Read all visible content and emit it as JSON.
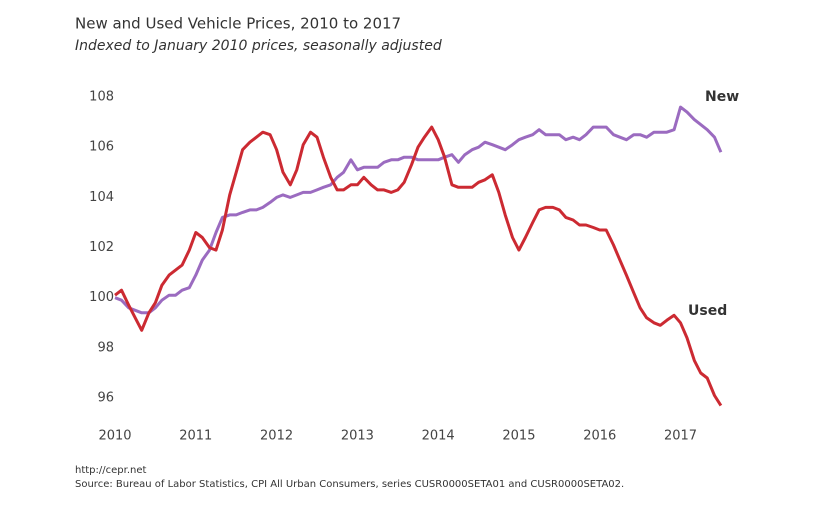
{
  "chart_data": {
    "type": "line",
    "title": "New and Used Vehicle Prices, 2010 to 2017",
    "subtitle": "Indexed to January 2010 prices, seasonally adjusted",
    "source_url": "http://cepr.net",
    "source": "Source:  Bureau of Labor Statistics, CPI All Urban Consumers, series CUSR0000SETA01 and CUSR0000SETA02.",
    "x": [
      2010,
      2010.08,
      2010.17,
      2010.25,
      2010.33,
      2010.42,
      2010.5,
      2010.58,
      2010.67,
      2010.75,
      2010.83,
      2010.92,
      2011,
      2011.08,
      2011.17,
      2011.25,
      2011.33,
      2011.42,
      2011.5,
      2011.58,
      2011.67,
      2011.75,
      2011.83,
      2011.92,
      2012,
      2012.08,
      2012.17,
      2012.25,
      2012.33,
      2012.42,
      2012.5,
      2012.58,
      2012.67,
      2012.75,
      2012.83,
      2012.92,
      2013,
      2013.08,
      2013.17,
      2013.25,
      2013.33,
      2013.42,
      2013.5,
      2013.58,
      2013.67,
      2013.75,
      2013.83,
      2013.92,
      2014,
      2014.08,
      2014.17,
      2014.25,
      2014.33,
      2014.42,
      2014.5,
      2014.58,
      2014.67,
      2014.75,
      2014.83,
      2014.92,
      2015,
      2015.08,
      2015.17,
      2015.25,
      2015.33,
      2015.42,
      2015.5,
      2015.58,
      2015.67,
      2015.75,
      2015.83,
      2015.92,
      2016,
      2016.08,
      2016.17,
      2016.25,
      2016.33,
      2016.42,
      2016.5,
      2016.58,
      2016.67,
      2016.75,
      2016.83,
      2016.92,
      2017,
      2017.08,
      2017.17,
      2017.25,
      2017.33,
      2017.42,
      2017.5
    ],
    "series": [
      {
        "name": "New",
        "color": "#9b6bc0",
        "values": [
          100.0,
          99.9,
          99.6,
          99.5,
          99.4,
          99.4,
          99.6,
          99.9,
          100.1,
          100.1,
          100.3,
          100.4,
          100.9,
          101.5,
          101.9,
          102.6,
          103.2,
          103.3,
          103.3,
          103.4,
          103.5,
          103.5,
          103.6,
          103.8,
          104.0,
          104.1,
          104.0,
          104.1,
          104.2,
          104.2,
          104.3,
          104.4,
          104.5,
          104.8,
          105.0,
          105.5,
          105.1,
          105.2,
          105.2,
          105.2,
          105.4,
          105.5,
          105.5,
          105.6,
          105.6,
          105.5,
          105.5,
          105.5,
          105.5,
          105.6,
          105.7,
          105.4,
          105.7,
          105.9,
          106.0,
          106.2,
          106.1,
          106.0,
          105.9,
          106.1,
          106.3,
          106.4,
          106.5,
          106.7,
          106.5,
          106.5,
          106.5,
          106.3,
          106.4,
          106.3,
          106.5,
          106.8,
          106.8,
          106.8,
          106.5,
          106.4,
          106.3,
          106.5,
          106.5,
          106.4,
          106.6,
          106.6,
          106.6,
          106.7,
          107.6,
          107.4,
          107.1,
          106.9,
          106.7,
          106.4,
          105.8
        ]
      },
      {
        "name": "Used",
        "color": "#cc2a32",
        "values": [
          100.1,
          100.3,
          99.7,
          99.2,
          98.7,
          99.4,
          99.8,
          100.5,
          100.9,
          101.1,
          101.3,
          101.9,
          102.6,
          102.4,
          102.0,
          101.9,
          102.7,
          104.1,
          105.0,
          105.9,
          106.2,
          106.4,
          106.6,
          106.5,
          105.9,
          105.0,
          104.5,
          105.1,
          106.1,
          106.6,
          106.4,
          105.6,
          104.8,
          104.3,
          104.3,
          104.5,
          104.5,
          104.8,
          104.5,
          104.3,
          104.3,
          104.2,
          104.3,
          104.6,
          105.3,
          106.0,
          106.4,
          106.8,
          106.3,
          105.6,
          104.5,
          104.4,
          104.4,
          104.4,
          104.6,
          104.7,
          104.9,
          104.2,
          103.3,
          102.4,
          101.9,
          102.4,
          103.0,
          103.5,
          103.6,
          103.6,
          103.5,
          103.2,
          103.1,
          102.9,
          102.9,
          102.8,
          102.7,
          102.7,
          102.1,
          101.5,
          100.9,
          100.2,
          99.6,
          99.2,
          99.0,
          98.9,
          99.1,
          99.3,
          99.0,
          98.4,
          97.5,
          97.0,
          96.8,
          96.1,
          95.7
        ]
      }
    ],
    "xlim": [
      2010,
      2017.6
    ],
    "xticks": [
      2010,
      2011,
      2012,
      2013,
      2014,
      2015,
      2016,
      2017
    ],
    "ylim": [
      95.5,
      108.5
    ],
    "yticks": [
      96,
      98,
      100,
      102,
      104,
      106,
      108
    ],
    "grid": false
  }
}
